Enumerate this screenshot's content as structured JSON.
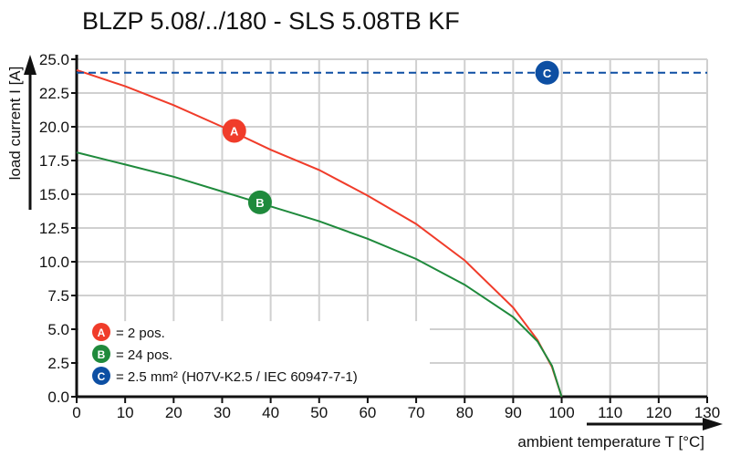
{
  "chart_data": {
    "type": "line",
    "title": "BLZP 5.08/../180 - SLS 5.08TB KF",
    "xlabel": "ambient temperature T [°C]",
    "ylabel": "load current I [A]",
    "xlim": [
      0,
      130
    ],
    "ylim": [
      0,
      25
    ],
    "xticks": [
      "0",
      "10",
      "20",
      "30",
      "40",
      "50",
      "60",
      "70",
      "80",
      "90",
      "100",
      "110",
      "120",
      "130"
    ],
    "yticks": [
      "0.0",
      "2.5",
      "5.0",
      "7.5",
      "10.0",
      "12.5",
      "15.0",
      "17.5",
      "20.0",
      "22.5",
      "25.0"
    ],
    "grid": true,
    "legend_position": "bottom-left",
    "series": [
      {
        "name": "A",
        "legend": "= 2 pos.",
        "color": "#f03c2a",
        "style": "solid",
        "marker_at": [
          32.5,
          19.7
        ],
        "x": [
          0,
          10,
          20,
          30,
          40,
          50,
          60,
          70,
          80,
          90,
          95,
          98,
          100
        ],
        "y": [
          24.2,
          23.0,
          21.6,
          20.0,
          18.3,
          16.8,
          14.9,
          12.8,
          10.1,
          6.6,
          4.2,
          2.2,
          0
        ]
      },
      {
        "name": "B",
        "legend": "= 24 pos.",
        "color": "#1f8a3c",
        "style": "solid",
        "marker_at": [
          37.8,
          14.4
        ],
        "x": [
          0,
          10,
          20,
          30,
          40,
          50,
          60,
          70,
          80,
          90,
          95,
          98,
          100
        ],
        "y": [
          18.1,
          17.2,
          16.3,
          15.2,
          14.1,
          13.0,
          11.7,
          10.2,
          8.3,
          5.9,
          4.1,
          2.3,
          0
        ]
      },
      {
        "name": "C",
        "legend": "= 2.5 mm² (H07V-K2.5 / IEC 60947-7-1)",
        "color": "#0d4fa3",
        "style": "dashed",
        "marker_at": [
          97,
          24
        ],
        "x": [
          0,
          130
        ],
        "y": [
          24,
          24
        ]
      }
    ]
  }
}
